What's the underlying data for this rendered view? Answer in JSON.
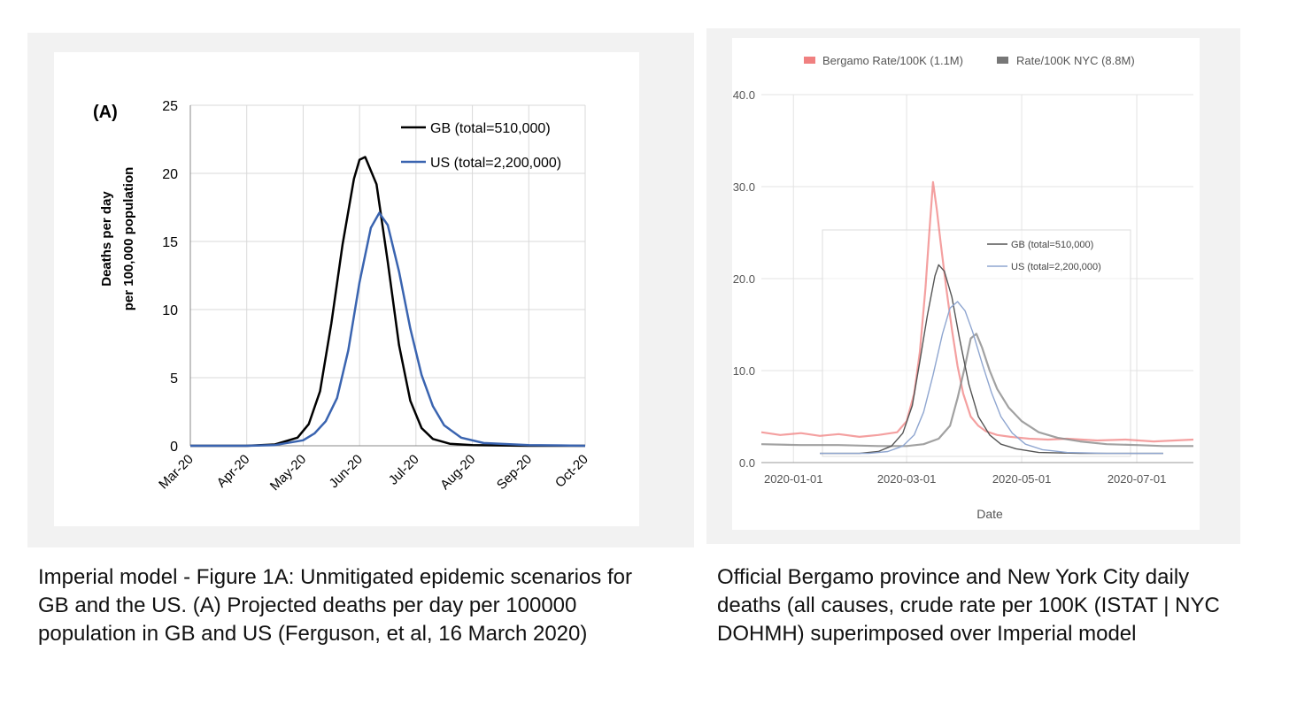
{
  "chart_data": [
    {
      "type": "line",
      "panel_label": "(A)",
      "ylabel_line1": "Deaths per day",
      "ylabel_line2": "per 100,000 population",
      "xlabel": "",
      "ylim": [
        0,
        25
      ],
      "yticks": [
        0,
        5,
        10,
        15,
        20,
        25
      ],
      "xticks": [
        "Mar-20",
        "Apr-20",
        "May-20",
        "Jun-20",
        "Jul-20",
        "Aug-20",
        "Sep-20",
        "Oct-20"
      ],
      "xlim": [
        0,
        7
      ],
      "grid": true,
      "legend_position": "top-right",
      "series": [
        {
          "name": "GB (total=510,000)",
          "color": "#000000",
          "x": [
            0,
            0.5,
            1,
            1.5,
            1.9,
            2.1,
            2.3,
            2.5,
            2.7,
            2.9,
            3.0,
            3.1,
            3.3,
            3.5,
            3.7,
            3.9,
            4.1,
            4.3,
            4.6,
            5.0,
            6.0,
            7.0
          ],
          "y": [
            0,
            0,
            0,
            0.1,
            0.6,
            1.6,
            4.0,
            9.0,
            14.8,
            19.6,
            21.0,
            21.2,
            19.2,
            13.5,
            7.4,
            3.3,
            1.3,
            0.5,
            0.15,
            0.05,
            0,
            0
          ]
        },
        {
          "name": "US (total=2,200,000)",
          "color": "#3a64b0",
          "x": [
            0,
            0.5,
            1,
            1.5,
            2.0,
            2.2,
            2.4,
            2.6,
            2.8,
            3.0,
            3.2,
            3.35,
            3.5,
            3.7,
            3.9,
            4.1,
            4.3,
            4.5,
            4.8,
            5.2,
            6.0,
            7.0
          ],
          "y": [
            0,
            0,
            0,
            0.05,
            0.4,
            0.9,
            1.8,
            3.5,
            7.0,
            12.0,
            16.0,
            17.1,
            16.2,
            12.8,
            8.6,
            5.2,
            2.9,
            1.5,
            0.6,
            0.2,
            0.05,
            0
          ]
        }
      ]
    },
    {
      "type": "line",
      "xlabel": "Date",
      "ylabel": "",
      "ylim": [
        0,
        40
      ],
      "yticks": [
        "0.0",
        "10.0",
        "20.0",
        "30.0",
        "40.0"
      ],
      "xticks": [
        "2020-01-01",
        "2020-03-01",
        "2020-05-01",
        "2020-07-01"
      ],
      "xlim": [
        "2019-12-15",
        "2020-07-31"
      ],
      "grid": true,
      "legend_position": "top",
      "series": [
        {
          "name": "Bergamo Rate/100K (1.1M)",
          "color": "#f08080",
          "x": [
            "2019-12-15",
            "2019-12-25",
            "2020-01-05",
            "2020-01-15",
            "2020-01-25",
            "2020-02-05",
            "2020-02-15",
            "2020-02-25",
            "2020-03-01",
            "2020-03-05",
            "2020-03-08",
            "2020-03-11",
            "2020-03-13",
            "2020-03-15",
            "2020-03-17",
            "2020-03-19",
            "2020-03-22",
            "2020-03-25",
            "2020-03-28",
            "2020-03-31",
            "2020-04-04",
            "2020-04-08",
            "2020-04-12",
            "2020-04-18",
            "2020-04-25",
            "2020-05-05",
            "2020-05-15",
            "2020-05-25",
            "2020-06-10",
            "2020-06-25",
            "2020-07-10",
            "2020-07-31"
          ],
          "y": [
            3.3,
            3.0,
            3.2,
            2.9,
            3.1,
            2.8,
            3.0,
            3.3,
            4.5,
            7.5,
            12.0,
            19.0,
            25.0,
            30.5,
            27.5,
            24.0,
            19.0,
            14.5,
            10.5,
            7.5,
            5.0,
            4.0,
            3.4,
            3.0,
            2.8,
            2.6,
            2.5,
            2.6,
            2.4,
            2.5,
            2.3,
            2.5
          ]
        },
        {
          "name": "Rate/100K NYC (8.8M)",
          "color": "#8a8a8a",
          "x": [
            "2019-12-15",
            "2020-01-05",
            "2020-01-25",
            "2020-02-15",
            "2020-03-01",
            "2020-03-10",
            "2020-03-18",
            "2020-03-24",
            "2020-03-28",
            "2020-04-01",
            "2020-04-04",
            "2020-04-07",
            "2020-04-10",
            "2020-04-14",
            "2020-04-18",
            "2020-04-24",
            "2020-05-01",
            "2020-05-10",
            "2020-05-20",
            "2020-06-01",
            "2020-06-15",
            "2020-07-01",
            "2020-07-15",
            "2020-07-31"
          ],
          "y": [
            2.0,
            1.9,
            1.9,
            1.8,
            1.8,
            2.0,
            2.6,
            4.0,
            7.0,
            10.5,
            13.5,
            14.0,
            12.5,
            10.0,
            8.0,
            6.0,
            4.5,
            3.3,
            2.7,
            2.3,
            2.0,
            1.9,
            1.8,
            1.8
          ]
        },
        {
          "name": "GB (total=510,000)",
          "color": "#555555",
          "x": [
            "2020-01-15",
            "2020-02-05",
            "2020-02-15",
            "2020-02-22",
            "2020-02-28",
            "2020-03-04",
            "2020-03-08",
            "2020-03-12",
            "2020-03-16",
            "2020-03-18",
            "2020-03-21",
            "2020-03-25",
            "2020-03-29",
            "2020-04-03",
            "2020-04-08",
            "2020-04-14",
            "2020-04-20",
            "2020-04-28",
            "2020-05-10",
            "2020-06-01",
            "2020-07-15"
          ],
          "y": [
            1.0,
            1.0,
            1.2,
            1.8,
            3.2,
            6.2,
            11.0,
            16.0,
            20.3,
            21.5,
            20.8,
            18.0,
            13.5,
            8.5,
            5.0,
            3.0,
            2.0,
            1.5,
            1.1,
            1.0,
            1.0
          ]
        },
        {
          "name": "US (total=2,200,000)",
          "color": "#8fa6d0",
          "x": [
            "2020-01-15",
            "2020-02-10",
            "2020-02-20",
            "2020-02-28",
            "2020-03-05",
            "2020-03-10",
            "2020-03-15",
            "2020-03-20",
            "2020-03-24",
            "2020-03-28",
            "2020-04-01",
            "2020-04-05",
            "2020-04-10",
            "2020-04-15",
            "2020-04-20",
            "2020-04-26",
            "2020-05-03",
            "2020-05-12",
            "2020-05-25",
            "2020-06-15",
            "2020-07-15"
          ],
          "y": [
            1.0,
            1.0,
            1.2,
            1.8,
            3.0,
            5.5,
            9.5,
            14.0,
            16.8,
            17.5,
            16.5,
            14.2,
            10.8,
            7.6,
            5.0,
            3.2,
            2.0,
            1.4,
            1.1,
            1.0,
            1.0
          ]
        }
      ]
    }
  ],
  "captions": {
    "left": "Imperial model - Figure 1A: Unmitigated epidemic scenarios for GB and the US. (A) Projected deaths per day per 100000 population in GB and US (Ferguson, et al, 16 March 2020)",
    "right": "Official Bergamo province and New York City daily deaths (all causes, crude rate per 100K (ISTAT | NYC DOHMH) superimposed over Imperial model"
  }
}
